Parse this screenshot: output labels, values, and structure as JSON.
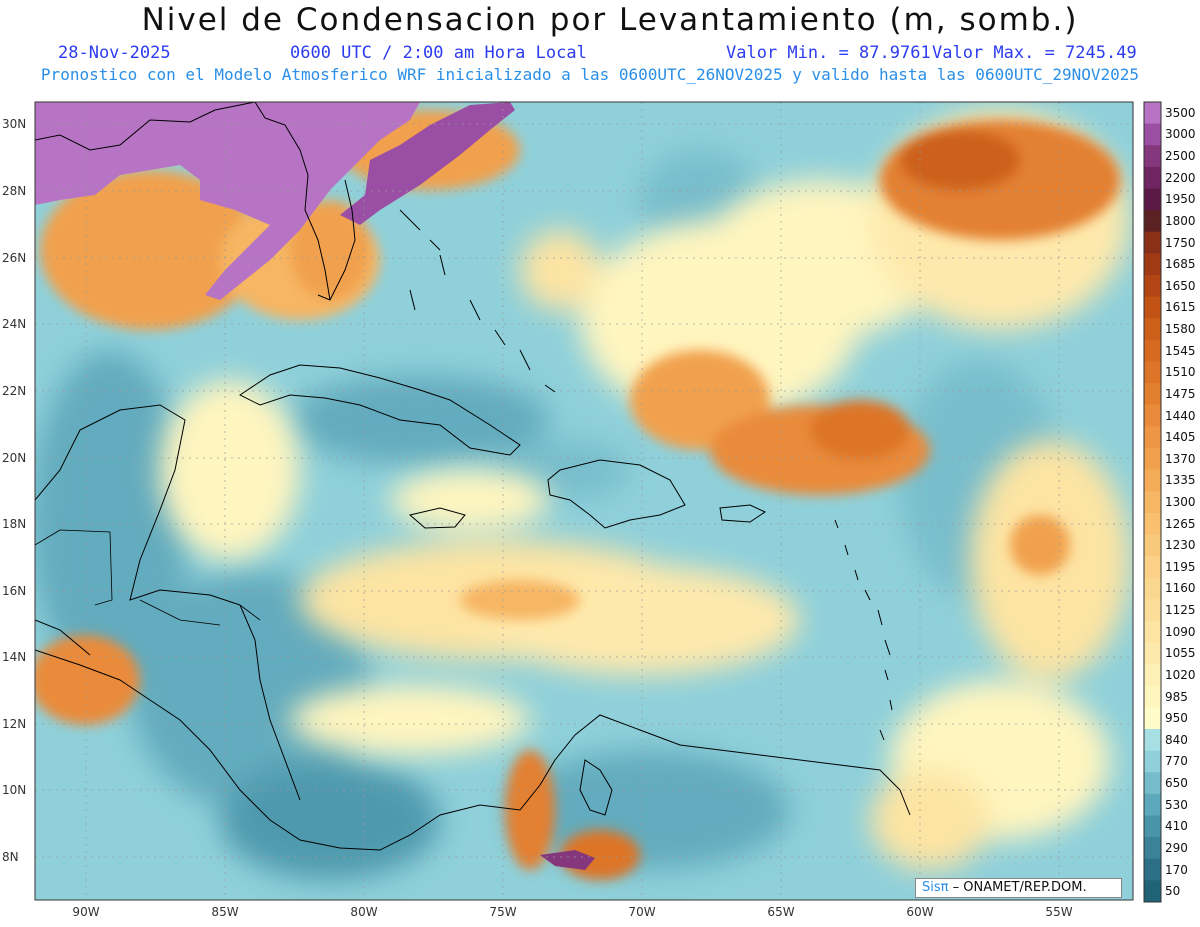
{
  "header": {
    "title": "Nivel de Condensacion por Levantamiento (m, somb.)",
    "date": "28-Nov-2025",
    "time": "0600 UTC / 2:00 am Hora Local",
    "min_label": "Valor Min. = 87.9761",
    "max_label": "Valor Max. = 7245.49",
    "model_info": "Pronostico con el Modelo Atmosferico WRF inicializado a las 0600UTC_26NOV2025 y valido hasta las  0600UTC_29NOV2025"
  },
  "map": {
    "lat_labels": [
      "30N",
      "28N",
      "26N",
      "24N",
      "22N",
      "20N",
      "18N",
      "16N",
      "14N",
      "12N",
      "10N",
      "8N"
    ],
    "lon_labels": [
      "90W",
      "85W",
      "80W",
      "75W",
      "70W",
      "65W",
      "60W",
      "55W"
    ],
    "credit_sis": "Sisπ",
    "credit_org": " – ONAMET/REP.DOM."
  },
  "colorbar": {
    "levels": [
      "3500",
      "3000",
      "2500",
      "2200",
      "1950",
      "1800",
      "1750",
      "1685",
      "1650",
      "1615",
      "1580",
      "1545",
      "1510",
      "1475",
      "1440",
      "1405",
      "1370",
      "1335",
      "1300",
      "1265",
      "1230",
      "1195",
      "1160",
      "1125",
      "1090",
      "1055",
      "1020",
      "985",
      "950",
      "840",
      "770",
      "650",
      "530",
      "410",
      "290",
      "170",
      "50"
    ],
    "colors": [
      "#b774c5",
      "#9a4fa4",
      "#84377c",
      "#6f2562",
      "#5c1846",
      "#5a2222",
      "#8a3018",
      "#a03a14",
      "#b34514",
      "#c25315",
      "#cc601a",
      "#d56a20",
      "#dd7528",
      "#e38030",
      "#e98b3a",
      "#ed9644",
      "#f1a14e",
      "#f4ac59",
      "#f6b664",
      "#f8c06f",
      "#f9c97b",
      "#fad186",
      "#fbd890",
      "#fcde9a",
      "#fde4a3",
      "#fee9ac",
      "#fef0b6",
      "#fff5bf",
      "#fffcc9",
      "#a8dfe4",
      "#8fd0da",
      "#76bccb",
      "#5ea8bb",
      "#4a94aa",
      "#3b8298",
      "#2d7086",
      "#206276"
    ]
  }
}
